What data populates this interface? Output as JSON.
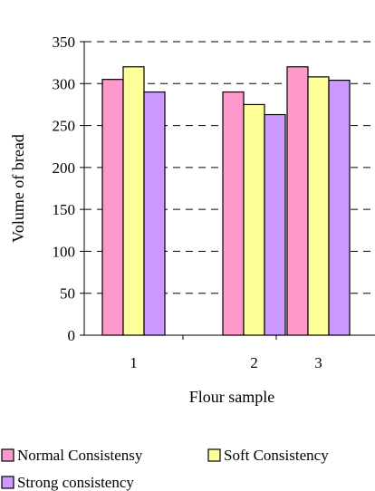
{
  "chart_data": {
    "type": "bar",
    "title": "",
    "xlabel": "Flour sample",
    "ylabel": "Volume of bread",
    "categories": [
      "1",
      "2",
      "3"
    ],
    "series": [
      {
        "name": "Normal Consistensy",
        "values": [
          305,
          290,
          320
        ],
        "color": "#ff99cc"
      },
      {
        "name": "Soft Consistency",
        "values": [
          320,
          275,
          308
        ],
        "color": "#ffff99"
      },
      {
        "name": "Strong consistency",
        "values": [
          290,
          263,
          304
        ],
        "color": "#cc99ff"
      }
    ],
    "ylim": [
      0,
      350
    ],
    "yticks": [
      0,
      50,
      100,
      150,
      200,
      250,
      300,
      350
    ],
    "grid": "dashed horizontal",
    "legend_position": "bottom"
  }
}
